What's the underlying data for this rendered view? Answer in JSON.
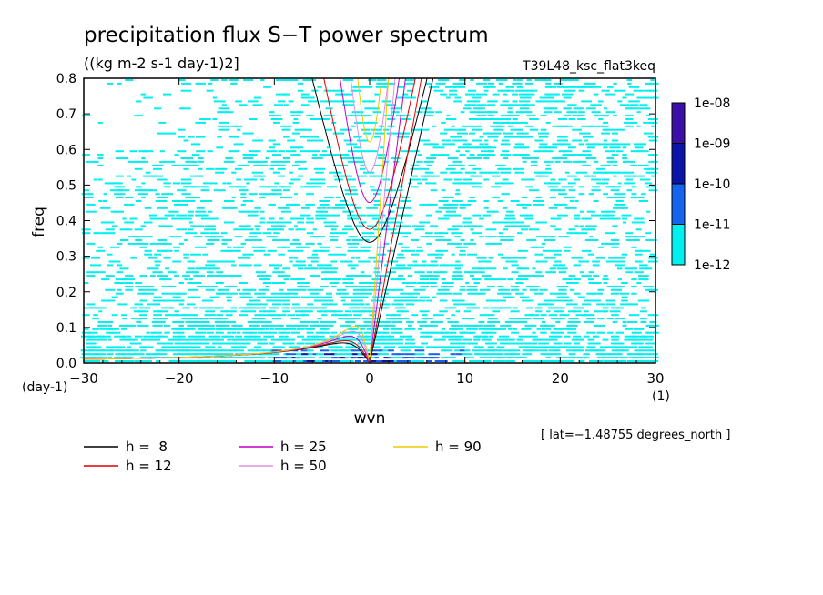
{
  "chart_data": {
    "type": "heatmap",
    "title": "precipitation flux S−T power spectrum",
    "subtitle": "((kg m-2 s-1 day-1)2]",
    "run_label": "T39L48_ksc_flat3keq",
    "xlabel": "wvn",
    "ylabel": "freq",
    "x_unit": "(1)",
    "y_unit": "(day-1)",
    "xlim": [
      -30,
      30
    ],
    "ylim": [
      0,
      0.8
    ],
    "x_ticks": [
      -30,
      -20,
      -10,
      0,
      10,
      20,
      30
    ],
    "x_tick_labels": [
      "−30",
      "−20",
      "−10",
      "0",
      "10",
      "20",
      "30"
    ],
    "y_ticks": [
      0,
      0.1,
      0.2,
      0.3,
      0.4,
      0.5,
      0.6,
      0.7,
      0.8
    ],
    "y_tick_labels": [
      "0.0",
      "0.1",
      "0.2",
      "0.3",
      "0.4",
      "0.5",
      "0.6",
      "0.7",
      "0.8"
    ],
    "annotation": "[ lat=−1.48755 degrees_north ]",
    "colorbar": {
      "labels": [
        "1e-08",
        "1e-09",
        "1e-10",
        "1e-11",
        "1e-12"
      ],
      "colors": [
        "#3a10a8",
        "#0a14a8",
        "#1464f0",
        "#00f0f0"
      ]
    },
    "dispersion_curves": [
      {
        "label": "h =  8",
        "h": 8,
        "color": "#000000"
      },
      {
        "label": "h = 12",
        "h": 12,
        "color": "#e00000"
      },
      {
        "label": "h = 25",
        "h": 25,
        "color": "#c000c0"
      },
      {
        "label": "h = 50",
        "h": 50,
        "color": "#e090e0"
      },
      {
        "label": "h = 90",
        "h": 90,
        "color": "#f0c800"
      }
    ],
    "grid": false,
    "legend_position": "bottom-left"
  }
}
